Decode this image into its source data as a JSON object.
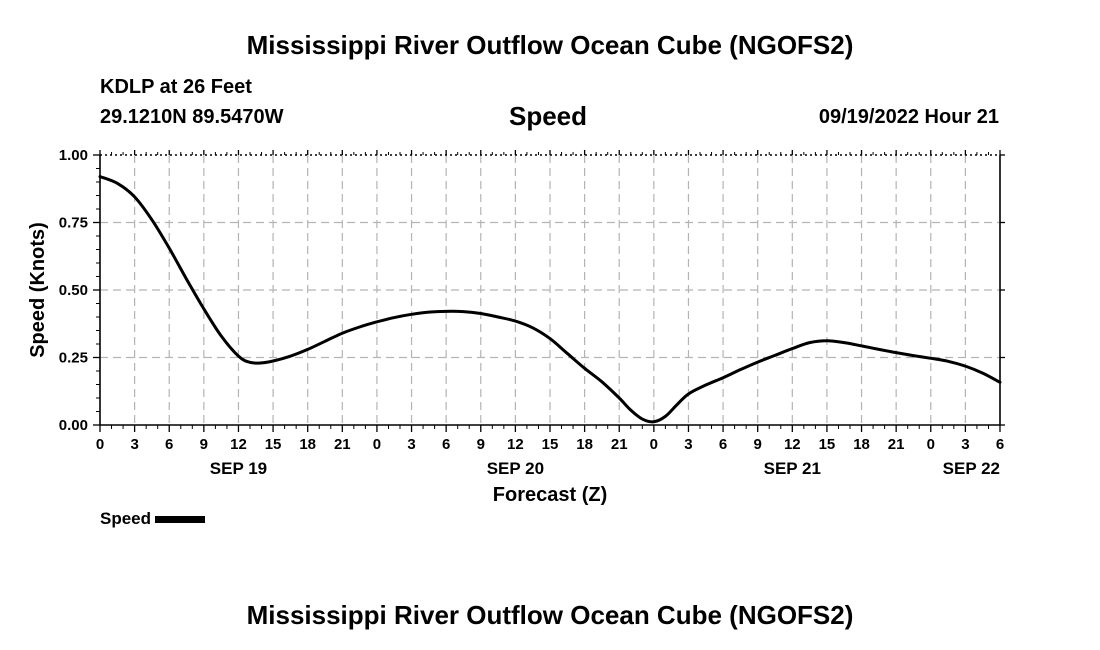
{
  "header": {
    "title": "Mississippi River Outflow Ocean Cube (NGOFS2)",
    "station": "KDLP at 26 Feet",
    "coords": "29.1210N  89.5470W",
    "metric": "Speed",
    "timestamp": "09/19/2022 Hour 21"
  },
  "footer": {
    "title": "Mississippi River Outflow Ocean Cube (NGOFS2)"
  },
  "legend": {
    "label": "Speed"
  },
  "chart_data": {
    "type": "line",
    "title": "Speed",
    "xlabel": "Forecast (Z)",
    "ylabel": "Speed (Knots)",
    "x_unit": "hours from 2022-09-19 00Z",
    "xlim": [
      0,
      78
    ],
    "ylim": [
      0,
      1
    ],
    "grid": true,
    "legend_position": "bottom-left",
    "y_ticks": [
      {
        "value": 0,
        "label": "0.00"
      },
      {
        "value": 0.25,
        "label": "0.25"
      },
      {
        "value": 0.5,
        "label": "0.50"
      },
      {
        "value": 0.75,
        "label": "0.75"
      },
      {
        "value": 1,
        "label": "1.00"
      }
    ],
    "x_ticks": [
      {
        "value": 0,
        "label": "0"
      },
      {
        "value": 3,
        "label": "3"
      },
      {
        "value": 6,
        "label": "6"
      },
      {
        "value": 9,
        "label": "9"
      },
      {
        "value": 12,
        "label": "12"
      },
      {
        "value": 15,
        "label": "15"
      },
      {
        "value": 18,
        "label": "18"
      },
      {
        "value": 21,
        "label": "21"
      },
      {
        "value": 24,
        "label": "0"
      },
      {
        "value": 27,
        "label": "3"
      },
      {
        "value": 30,
        "label": "6"
      },
      {
        "value": 33,
        "label": "9"
      },
      {
        "value": 36,
        "label": "12"
      },
      {
        "value": 39,
        "label": "15"
      },
      {
        "value": 42,
        "label": "18"
      },
      {
        "value": 45,
        "label": "21"
      },
      {
        "value": 48,
        "label": "0"
      },
      {
        "value": 51,
        "label": "3"
      },
      {
        "value": 54,
        "label": "6"
      },
      {
        "value": 57,
        "label": "9"
      },
      {
        "value": 60,
        "label": "12"
      },
      {
        "value": 63,
        "label": "15"
      },
      {
        "value": 66,
        "label": "18"
      },
      {
        "value": 69,
        "label": "21"
      },
      {
        "value": 72,
        "label": "0"
      },
      {
        "value": 75,
        "label": "3"
      },
      {
        "value": 78,
        "label": "6"
      }
    ],
    "date_labels": [
      {
        "value": 12,
        "label": "SEP 19"
      },
      {
        "value": 36,
        "label": "SEP 20"
      },
      {
        "value": 60,
        "label": "SEP 21"
      },
      {
        "value": 75,
        "label": "SEP 22"
      }
    ],
    "series": [
      {
        "name": "Speed",
        "color": "#000000",
        "x": [
          0,
          1.5,
          3,
          4.5,
          6,
          7.5,
          9,
          10.5,
          12,
          13,
          14,
          15,
          16.5,
          18,
          19.5,
          21,
          22.5,
          24,
          25.5,
          27,
          28.5,
          30,
          31.5,
          33,
          34.5,
          36,
          37.5,
          39,
          40.5,
          42,
          43.5,
          45,
          46,
          47,
          48,
          49,
          50,
          51,
          52.5,
          54,
          55.5,
          57,
          58.5,
          60,
          61.5,
          63,
          64.5,
          66,
          67.5,
          69,
          70.5,
          72,
          73.5,
          75,
          76.5,
          78
        ],
        "y": [
          0.92,
          0.895,
          0.845,
          0.76,
          0.655,
          0.54,
          0.43,
          0.33,
          0.255,
          0.232,
          0.23,
          0.237,
          0.255,
          0.28,
          0.31,
          0.34,
          0.363,
          0.382,
          0.398,
          0.41,
          0.418,
          0.421,
          0.42,
          0.413,
          0.4,
          0.385,
          0.36,
          0.32,
          0.265,
          0.21,
          0.16,
          0.1,
          0.055,
          0.022,
          0.012,
          0.032,
          0.075,
          0.115,
          0.148,
          0.175,
          0.205,
          0.233,
          0.258,
          0.283,
          0.305,
          0.312,
          0.305,
          0.293,
          0.28,
          0.268,
          0.257,
          0.247,
          0.236,
          0.218,
          0.192,
          0.158
        ]
      }
    ]
  }
}
